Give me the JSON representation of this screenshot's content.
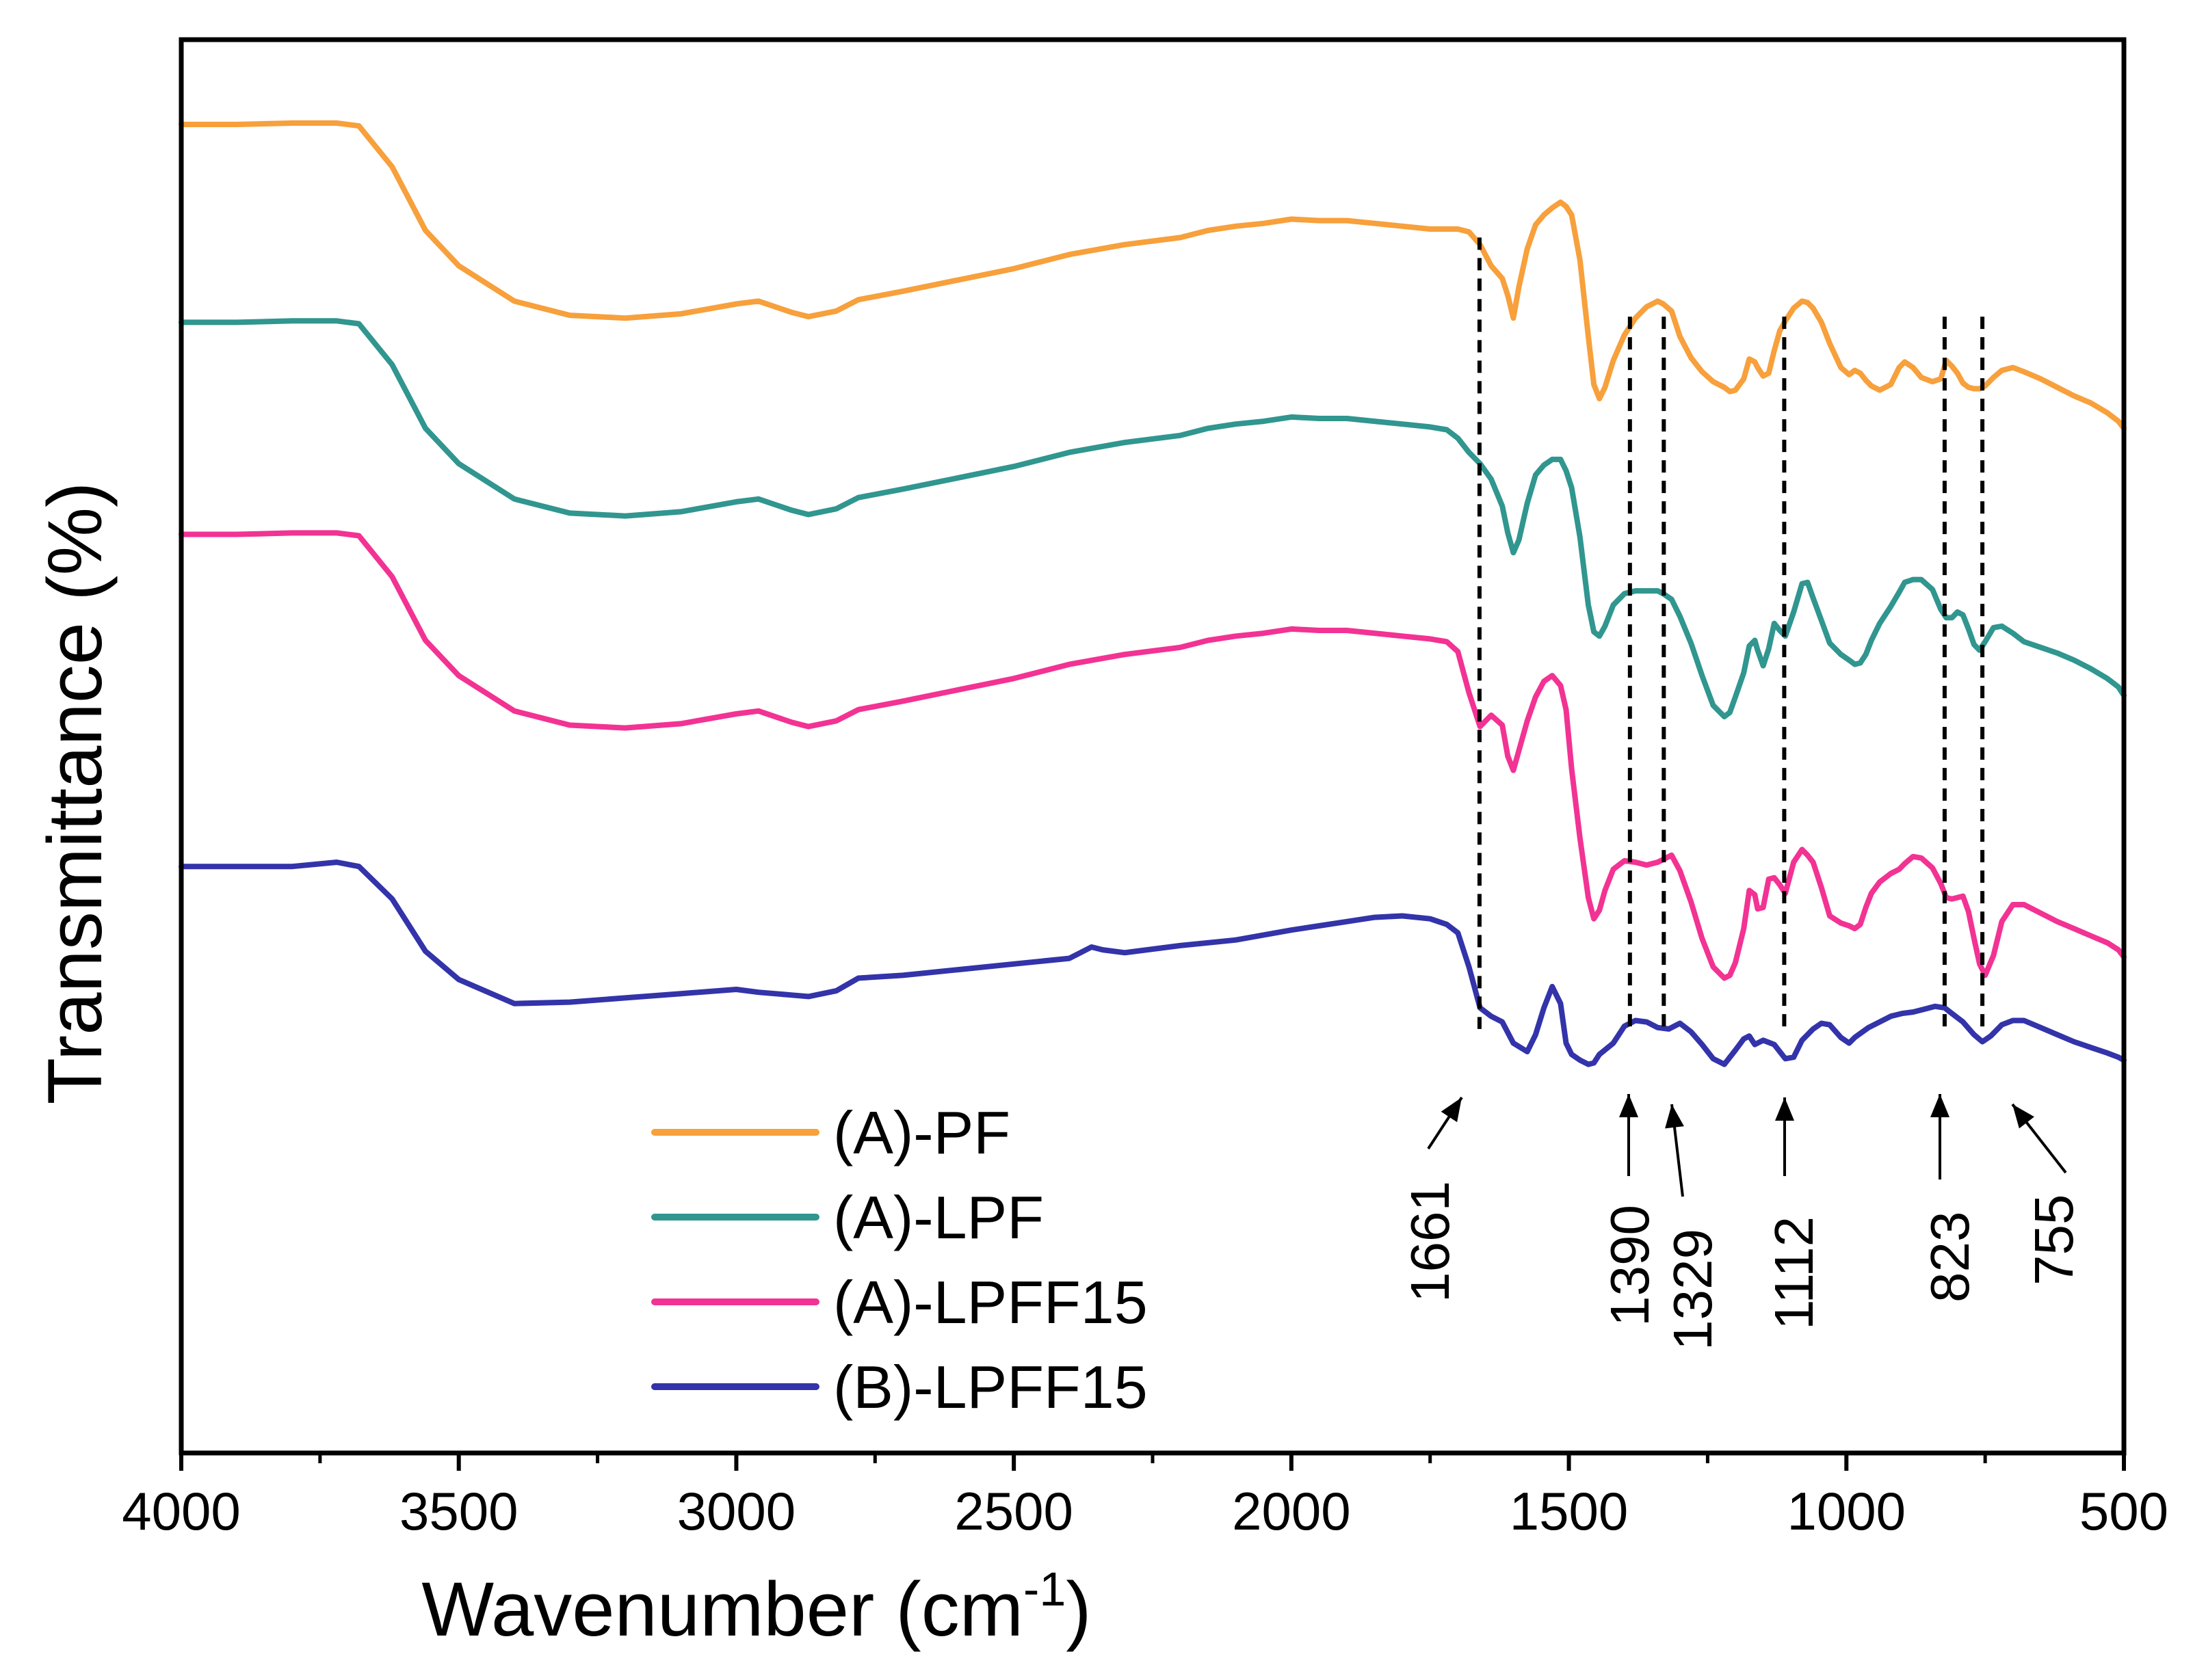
{
  "chart_data": {
    "type": "line",
    "title": "",
    "xlabel": "Wavenumber (cm",
    "xlabel_superscript": "-1",
    "xlabel_close": ")",
    "ylabel": "Transmittance (%)",
    "xlim": [
      4000,
      500
    ],
    "x_reversed": true,
    "ylim": [
      0,
      100
    ],
    "y_ticks_shown": false,
    "grid": false,
    "legend_position": "bottom-left",
    "x_ticks": [
      4000,
      3500,
      3000,
      2500,
      2000,
      1500,
      1000,
      500
    ],
    "x_tick_labels": [
      "4000",
      "3500",
      "3000",
      "2500",
      "2000",
      "1500",
      "1000",
      "500"
    ],
    "series": [
      {
        "name": "(A)-PF",
        "color": "#F7A03C",
        "x": [
          4000,
          3900,
          3800,
          3720,
          3680,
          3620,
          3560,
          3500,
          3400,
          3300,
          3200,
          3100,
          3000,
          2960,
          2900,
          2870,
          2820,
          2780,
          2700,
          2600,
          2500,
          2400,
          2300,
          2200,
          2150,
          2100,
          2050,
          2000,
          1950,
          1900,
          1850,
          1800,
          1750,
          1720,
          1700,
          1680,
          1660,
          1640,
          1620,
          1610,
          1600,
          1590,
          1575,
          1560,
          1545,
          1530,
          1515,
          1505,
          1495,
          1480,
          1465,
          1455,
          1445,
          1435,
          1420,
          1400,
          1380,
          1360,
          1340,
          1330,
          1315,
          1300,
          1280,
          1260,
          1240,
          1220,
          1210,
          1200,
          1185,
          1175,
          1165,
          1160,
          1150,
          1140,
          1130,
          1120,
          1110,
          1095,
          1080,
          1070,
          1060,
          1045,
          1030,
          1010,
          995,
          985,
          975,
          965,
          955,
          940,
          920,
          905,
          895,
          880,
          865,
          845,
          830,
          820,
          810,
          800,
          790,
          780,
          770,
          760,
          750,
          735,
          720,
          700,
          680,
          650,
          620,
          590,
          560,
          530,
          510,
          500
        ],
        "y": [
          94.0,
          94.0,
          94.1,
          94.1,
          93.9,
          91.0,
          86.5,
          84.0,
          81.5,
          80.5,
          80.3,
          80.6,
          81.3,
          81.5,
          80.7,
          80.4,
          80.8,
          81.6,
          82.2,
          83.0,
          83.8,
          84.8,
          85.5,
          86.0,
          86.5,
          86.8,
          87.0,
          87.3,
          87.2,
          87.2,
          87.0,
          86.8,
          86.6,
          86.6,
          86.6,
          86.4,
          85.5,
          84.0,
          83.1,
          81.9,
          80.3,
          82.5,
          85.2,
          86.9,
          87.6,
          88.1,
          88.5,
          88.2,
          87.6,
          84.4,
          79.0,
          75.6,
          74.6,
          75.4,
          77.3,
          79.1,
          80.3,
          81.1,
          81.5,
          81.3,
          80.8,
          79.0,
          77.5,
          76.5,
          75.8,
          75.4,
          75.1,
          75.2,
          76.0,
          77.4,
          77.2,
          76.8,
          76.2,
          76.4,
          78.0,
          79.4,
          80.1,
          81.0,
          81.5,
          81.4,
          81.0,
          80.0,
          78.5,
          76.8,
          76.3,
          76.6,
          76.4,
          75.9,
          75.5,
          75.2,
          75.6,
          76.8,
          77.2,
          76.8,
          76.1,
          75.8,
          76.0,
          77.3,
          76.9,
          76.4,
          75.7,
          75.4,
          75.3,
          75.3,
          75.5,
          76.1,
          76.6,
          76.8,
          76.5,
          76.0,
          75.4,
          74.8,
          74.3,
          73.6,
          73.0,
          72.5
        ]
      },
      {
        "name": "(A)-LPF",
        "color": "#30968F",
        "x": [
          4000,
          3900,
          3800,
          3720,
          3680,
          3620,
          3560,
          3500,
          3400,
          3300,
          3200,
          3100,
          3000,
          2960,
          2900,
          2870,
          2820,
          2780,
          2700,
          2600,
          2500,
          2400,
          2300,
          2200,
          2150,
          2100,
          2050,
          2000,
          1950,
          1900,
          1850,
          1800,
          1750,
          1720,
          1700,
          1680,
          1660,
          1640,
          1620,
          1610,
          1600,
          1590,
          1575,
          1560,
          1545,
          1530,
          1515,
          1505,
          1495,
          1480,
          1465,
          1455,
          1445,
          1435,
          1420,
          1400,
          1380,
          1360,
          1340,
          1330,
          1315,
          1300,
          1280,
          1260,
          1240,
          1220,
          1210,
          1200,
          1185,
          1175,
          1165,
          1160,
          1150,
          1140,
          1130,
          1120,
          1110,
          1095,
          1080,
          1070,
          1060,
          1045,
          1030,
          1010,
          995,
          985,
          975,
          965,
          955,
          940,
          920,
          905,
          895,
          880,
          865,
          845,
          830,
          820,
          810,
          800,
          790,
          780,
          770,
          760,
          750,
          735,
          720,
          700,
          680,
          650,
          620,
          590,
          560,
          530,
          510,
          500
        ],
        "y": [
          80.0,
          80.0,
          80.1,
          80.1,
          79.9,
          77.0,
          72.5,
          70.0,
          67.5,
          66.5,
          66.3,
          66.6,
          67.3,
          67.5,
          66.7,
          66.4,
          66.8,
          67.6,
          68.2,
          69.0,
          69.8,
          70.8,
          71.5,
          72.0,
          72.5,
          72.8,
          73.0,
          73.3,
          73.2,
          73.2,
          73.0,
          72.8,
          72.6,
          72.4,
          71.8,
          70.8,
          70.0,
          68.9,
          67.0,
          65.1,
          63.7,
          64.6,
          67.2,
          69.2,
          69.9,
          70.3,
          70.3,
          69.5,
          68.3,
          64.8,
          60.0,
          58.1,
          57.8,
          58.5,
          60.0,
          60.8,
          61.0,
          61.0,
          61.0,
          60.8,
          60.4,
          59.2,
          57.3,
          55.0,
          52.9,
          52.1,
          52.4,
          53.5,
          55.2,
          57.1,
          57.5,
          56.8,
          55.7,
          56.9,
          58.7,
          58.2,
          57.8,
          59.5,
          61.5,
          61.6,
          60.5,
          58.9,
          57.3,
          56.5,
          56.1,
          55.8,
          55.9,
          56.5,
          57.5,
          58.7,
          59.9,
          60.9,
          61.6,
          61.8,
          61.8,
          61.1,
          59.7,
          59.1,
          59.1,
          59.5,
          59.3,
          58.3,
          57.2,
          56.8,
          57.4,
          58.4,
          58.5,
          58.0,
          57.4,
          57.0,
          56.6,
          56.1,
          55.5,
          54.8,
          54.2,
          53.6
        ]
      },
      {
        "name": "(A)-LPFF15",
        "color": "#F23393",
        "x": [
          4000,
          3900,
          3800,
          3720,
          3680,
          3620,
          3560,
          3500,
          3400,
          3300,
          3200,
          3100,
          3000,
          2960,
          2900,
          2870,
          2820,
          2780,
          2700,
          2600,
          2500,
          2400,
          2300,
          2200,
          2150,
          2100,
          2050,
          2000,
          1950,
          1900,
          1850,
          1800,
          1750,
          1720,
          1700,
          1680,
          1660,
          1640,
          1620,
          1610,
          1600,
          1590,
          1575,
          1560,
          1545,
          1530,
          1515,
          1505,
          1495,
          1480,
          1465,
          1455,
          1445,
          1435,
          1420,
          1400,
          1380,
          1360,
          1340,
          1330,
          1315,
          1300,
          1280,
          1260,
          1240,
          1220,
          1210,
          1200,
          1185,
          1175,
          1165,
          1160,
          1150,
          1140,
          1130,
          1120,
          1110,
          1095,
          1080,
          1070,
          1060,
          1045,
          1030,
          1010,
          995,
          985,
          975,
          965,
          955,
          940,
          920,
          905,
          895,
          880,
          865,
          845,
          830,
          820,
          810,
          800,
          790,
          780,
          770,
          760,
          750,
          735,
          720,
          700,
          680,
          650,
          620,
          590,
          560,
          530,
          510,
          500
        ],
        "y": [
          65.0,
          65.0,
          65.1,
          65.1,
          64.9,
          62.0,
          57.5,
          55.0,
          52.5,
          51.5,
          51.3,
          51.6,
          52.3,
          52.5,
          51.7,
          51.4,
          51.8,
          52.6,
          53.2,
          54.0,
          54.8,
          55.8,
          56.5,
          57.0,
          57.5,
          57.8,
          58.0,
          58.3,
          58.2,
          58.2,
          58.0,
          57.8,
          57.6,
          57.4,
          56.7,
          53.8,
          51.4,
          52.2,
          51.5,
          49.3,
          48.3,
          49.7,
          51.8,
          53.5,
          54.6,
          55.0,
          54.3,
          52.6,
          48.4,
          43.5,
          39.3,
          37.8,
          38.4,
          39.8,
          41.3,
          41.9,
          41.8,
          41.6,
          41.8,
          42.0,
          42.3,
          41.2,
          39.0,
          36.4,
          34.4,
          33.6,
          33.8,
          34.7,
          37.1,
          39.8,
          39.5,
          38.5,
          38.6,
          40.6,
          40.7,
          40.2,
          39.6,
          41.8,
          42.7,
          42.3,
          41.8,
          40.0,
          38.0,
          37.5,
          37.3,
          37.1,
          37.4,
          38.6,
          39.6,
          40.4,
          41.0,
          41.3,
          41.7,
          42.2,
          42.1,
          41.4,
          40.3,
          39.3,
          39.2,
          39.3,
          39.4,
          38.3,
          36.4,
          34.6,
          33.8,
          35.2,
          37.6,
          38.8,
          38.8,
          38.2,
          37.6,
          37.1,
          36.6,
          36.1,
          35.6,
          35.1
        ]
      },
      {
        "name": "(B)-LPFF15",
        "color": "#3333AA",
        "x": [
          4000,
          3900,
          3800,
          3720,
          3680,
          3620,
          3560,
          3500,
          3400,
          3300,
          3200,
          3100,
          3000,
          2960,
          2900,
          2870,
          2820,
          2780,
          2700,
          2600,
          2500,
          2400,
          2360,
          2340,
          2300,
          2200,
          2100,
          2000,
          1950,
          1900,
          1850,
          1800,
          1750,
          1720,
          1700,
          1680,
          1660,
          1640,
          1620,
          1600,
          1575,
          1560,
          1545,
          1530,
          1515,
          1505,
          1495,
          1480,
          1465,
          1455,
          1445,
          1420,
          1400,
          1380,
          1360,
          1340,
          1320,
          1300,
          1280,
          1260,
          1240,
          1220,
          1200,
          1185,
          1175,
          1165,
          1150,
          1130,
          1110,
          1095,
          1080,
          1060,
          1045,
          1030,
          1010,
          995,
          985,
          960,
          940,
          920,
          900,
          880,
          860,
          840,
          823,
          810,
          790,
          770,
          755,
          740,
          720,
          700,
          680,
          650,
          620,
          590,
          560,
          530,
          510,
          500
        ],
        "y": [
          41.5,
          41.5,
          41.5,
          41.8,
          41.5,
          39.2,
          35.5,
          33.5,
          31.8,
          31.9,
          32.2,
          32.5,
          32.8,
          32.6,
          32.4,
          32.3,
          32.7,
          33.6,
          33.8,
          34.2,
          34.6,
          35.0,
          35.8,
          35.6,
          35.4,
          35.9,
          36.3,
          37.0,
          37.3,
          37.6,
          37.9,
          38.0,
          37.8,
          37.4,
          36.8,
          34.4,
          31.5,
          30.9,
          30.5,
          29.0,
          28.4,
          29.6,
          31.5,
          33.0,
          31.8,
          29.0,
          28.2,
          27.8,
          27.5,
          27.6,
          28.2,
          29.0,
          30.2,
          30.6,
          30.5,
          30.1,
          30.0,
          30.4,
          29.8,
          28.9,
          27.9,
          27.5,
          28.5,
          29.3,
          29.5,
          28.9,
          29.2,
          28.9,
          27.9,
          28.0,
          29.2,
          30.0,
          30.4,
          30.3,
          29.4,
          29.0,
          29.4,
          30.1,
          30.5,
          30.9,
          31.1,
          31.2,
          31.4,
          31.6,
          31.5,
          31.1,
          30.5,
          29.6,
          29.1,
          29.5,
          30.3,
          30.6,
          30.6,
          30.1,
          29.6,
          29.1,
          28.7,
          28.3,
          28.0,
          27.8
        ]
      }
    ],
    "reference_lines": [
      {
        "x": 1661,
        "y_top": 86.0
      },
      {
        "x": 1390,
        "y_top": 80.4
      },
      {
        "x": 1329,
        "y_top": 80.4
      },
      {
        "x": 1112,
        "y_top": 80.4
      },
      {
        "x": 823,
        "y_top": 80.4
      },
      {
        "x": 755,
        "y_top": 80.4
      }
    ],
    "annotations": [
      {
        "label": "1661",
        "x": 1661
      },
      {
        "label": "1390",
        "x": 1390
      },
      {
        "label": "1329",
        "x": 1329
      },
      {
        "label": "1112",
        "x": 1112
      },
      {
        "label": "823",
        "x": 823
      },
      {
        "label": "755",
        "x": 755
      }
    ]
  }
}
